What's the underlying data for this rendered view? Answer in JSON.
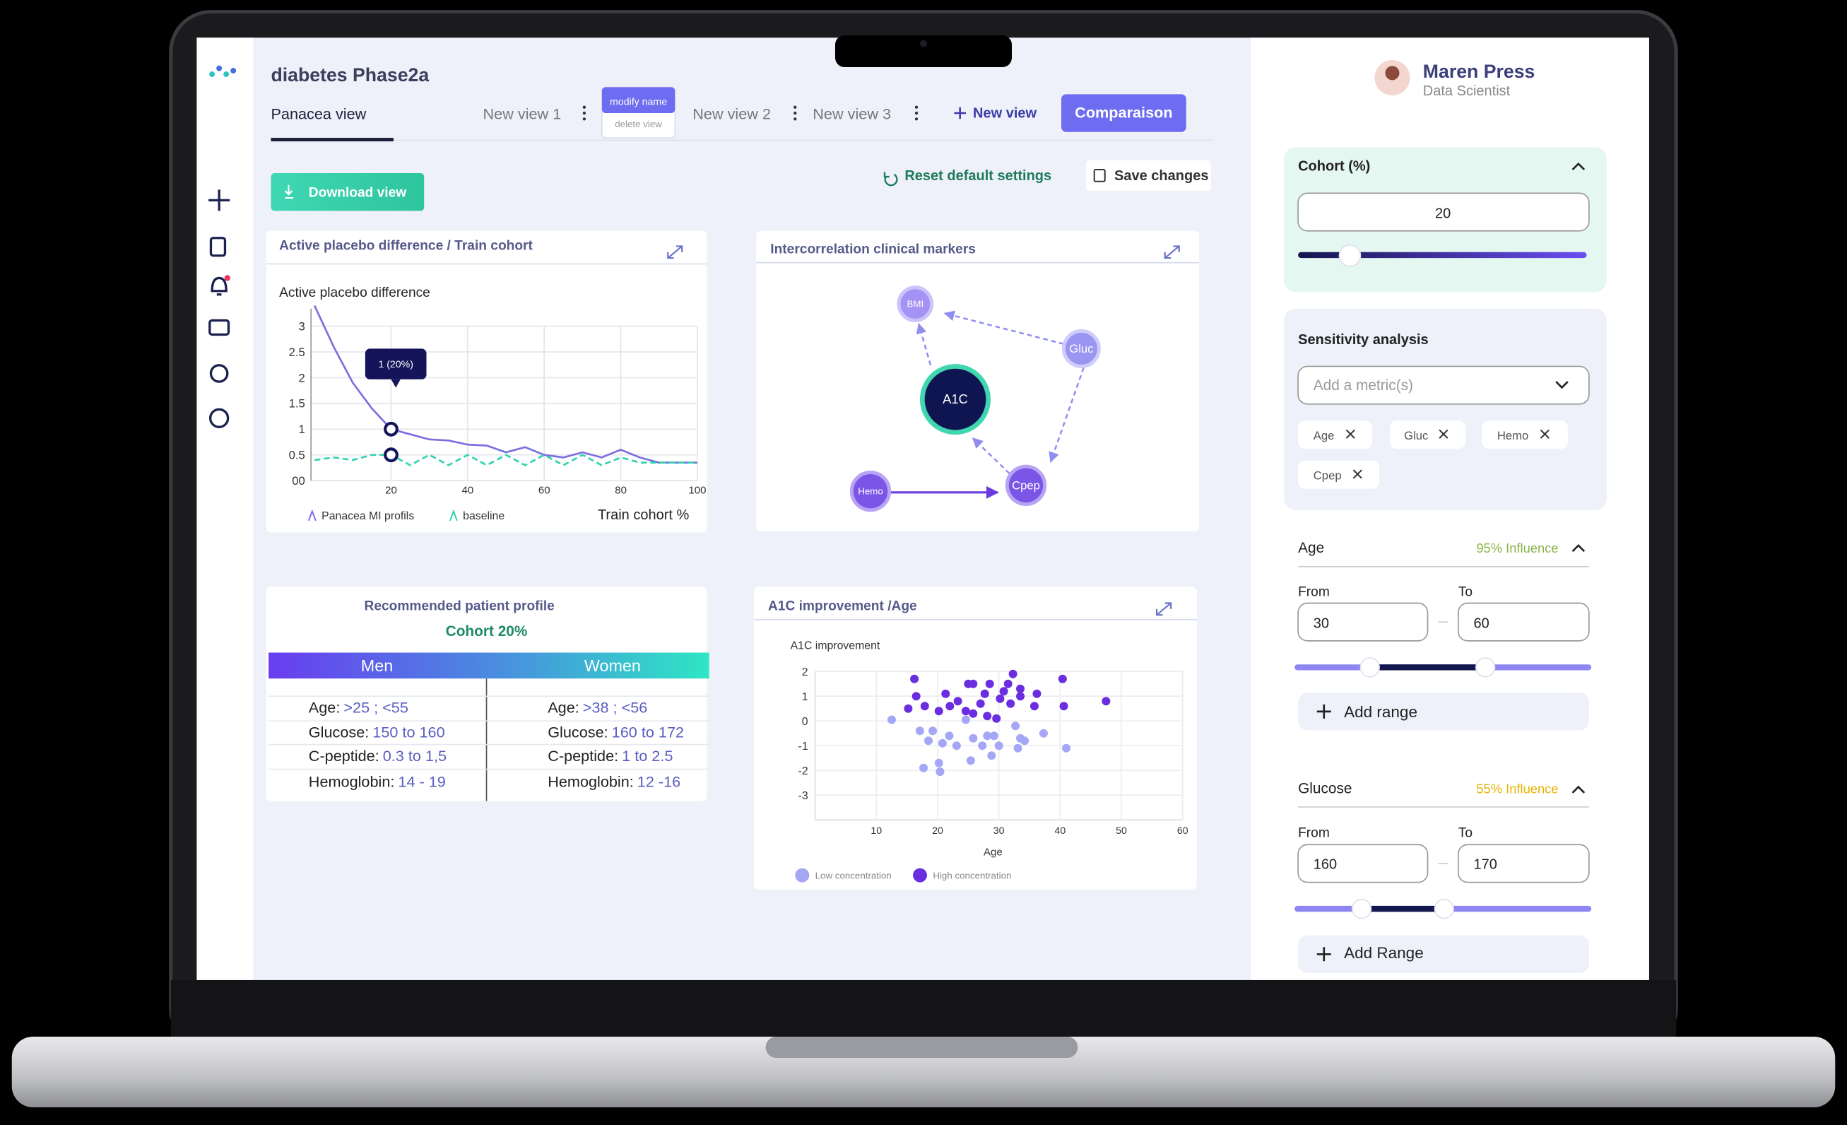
{
  "header": {
    "project": "diabetes Phase2a",
    "tabs": [
      "Panacea view",
      "New view 1",
      "New view 2",
      "New view 3"
    ],
    "menu": [
      "modify name",
      "delete view"
    ],
    "new_view": "New view",
    "comparison": "Comparaison"
  },
  "toolbar": {
    "download": "Download view",
    "reset": "Reset default settings",
    "save": "Save changes"
  },
  "user": {
    "name": "Maren Press",
    "role": "Data Scientist"
  },
  "chart_data": [
    {
      "type": "line",
      "panel_title": "Active placebo difference  / Train cohort",
      "title": "Active placebo difference",
      "x_label": "Train cohort %",
      "x": [
        0,
        5,
        10,
        15,
        20,
        25,
        30,
        35,
        40,
        45,
        50,
        55,
        60,
        65,
        70,
        75,
        80,
        85,
        90,
        95,
        100
      ],
      "series": [
        {
          "name": "Panacea MI profils",
          "color": "#7b6fe0",
          "values": [
            3.4,
            2.6,
            1.9,
            1.4,
            1.0,
            0.9,
            0.8,
            0.78,
            0.7,
            0.68,
            0.55,
            0.65,
            0.5,
            0.45,
            0.55,
            0.45,
            0.6,
            0.45,
            0.35,
            0.35,
            0.35
          ]
        },
        {
          "name": "baseline",
          "color": "#2fd3b0",
          "dashed": true,
          "values": [
            0.4,
            0.45,
            0.4,
            0.5,
            0.5,
            0.3,
            0.5,
            0.3,
            0.5,
            0.3,
            0.5,
            0.3,
            0.5,
            0.3,
            0.5,
            0.3,
            0.45,
            0.35,
            0.35,
            0.35,
            0.35
          ]
        }
      ],
      "annotation": {
        "text": "1 (20%)",
        "x": 20
      },
      "xlim": [
        0,
        100
      ],
      "xticks": [
        20,
        40,
        60,
        80,
        100
      ],
      "ylim": [
        0,
        3.4
      ],
      "yticks": [
        {
          "value": 0,
          "label": "00"
        },
        0.5,
        1,
        1.5,
        2,
        2.5,
        3
      ],
      "grid": true
    },
    {
      "type": "scatter",
      "panel_title": "A1C improvement /Age",
      "y_label": "A1C improvement",
      "x_label": "Age",
      "series": [
        {
          "name": "Low concentration",
          "color": "#a5a6f6",
          "x": [
            12.5,
            17.1,
            19.2,
            18.5,
            20.8,
            21.9,
            23.1,
            24.6,
            25.8,
            27.3,
            28.1,
            29.2,
            30,
            28.8,
            25.4,
            32.7,
            33.5,
            34.2,
            33.1,
            37.3,
            41,
            17.7,
            20.2,
            20.4
          ],
          "values": [
            0.05,
            -0.4,
            -0.4,
            -0.8,
            -0.9,
            -0.6,
            -1,
            0.05,
            -0.7,
            -1,
            -0.6,
            -0.6,
            -1,
            -1.4,
            -1.6,
            -0.2,
            -0.7,
            -0.8,
            -1.1,
            -0.5,
            -1.1,
            -1.9,
            -1.7,
            -2.05
          ]
        },
        {
          "name": "High concentration",
          "color": "#6a2de0",
          "x": [
            16.2,
            16.5,
            15.2,
            17.9,
            20.2,
            21.3,
            22,
            23.3,
            25,
            25.8,
            24.6,
            25.8,
            27,
            27.7,
            28.1,
            28.5,
            29.6,
            30.2,
            30.8,
            31.5,
            32.3,
            31.9,
            33.5,
            33.5,
            36.2,
            35.8,
            40.4,
            40.6,
            47.5
          ],
          "values": [
            1.7,
            1,
            0.5,
            0.6,
            0.4,
            1.1,
            0.6,
            0.8,
            1.5,
            1.5,
            0.4,
            0.3,
            0.7,
            1.1,
            0.2,
            1.5,
            0.1,
            0.9,
            1.2,
            1.5,
            1.9,
            0.7,
            1,
            1.3,
            1.1,
            0.6,
            1.7,
            0.6,
            0.8
          ]
        }
      ],
      "xlim": [
        0,
        60
      ],
      "xticks": [
        10,
        20,
        30,
        40,
        50,
        60
      ],
      "ylim": [
        -4,
        2
      ],
      "yticks": [
        2,
        1,
        0,
        -1,
        -2,
        -3
      ],
      "grid": true
    }
  ],
  "network": {
    "title": "Intercorrelation clinical markers",
    "nodes": [
      "BMI",
      "Gluc",
      "A1C",
      "Hemo",
      "Cpep"
    ]
  },
  "profile": {
    "title": "Recommended patient profile",
    "cohort": "Cohort 20%",
    "columns": [
      "Men",
      "Women"
    ],
    "rows": [
      [
        [
          "Age:",
          ">25 ; <55"
        ],
        [
          "Age:",
          ">38 ; <56"
        ]
      ],
      [
        [
          "Glucose:",
          "150 to 160"
        ],
        [
          "Glucose:",
          "160 to 172"
        ]
      ],
      [
        [
          "C-peptide:",
          "0.3 to 1,5"
        ],
        [
          "C-peptide:",
          "1 to 2.5"
        ]
      ],
      [
        [
          "Hemoglobin:",
          "14 - 19"
        ],
        [
          "Hemoglobin:",
          "12 -16"
        ]
      ]
    ]
  },
  "filters": {
    "cohort": {
      "label": "Cohort (%)",
      "value": 20
    },
    "sensitivity": {
      "label": "Sensitivity analysis",
      "placeholder": "Add a metric(s)",
      "tags": [
        "Age",
        "Gluc",
        "Hemo",
        "Cpep"
      ]
    },
    "ranges": [
      {
        "label": "Age",
        "influence": "95% Influence",
        "from_label": "From",
        "to_label": "To",
        "from": 30,
        "to": 60,
        "add": "Add range"
      },
      {
        "label": "Glucose",
        "influence": "55% Influence",
        "from_label": "From",
        "to_label": "To",
        "from": 160,
        "to": 170,
        "add": "Add Range"
      }
    ]
  }
}
